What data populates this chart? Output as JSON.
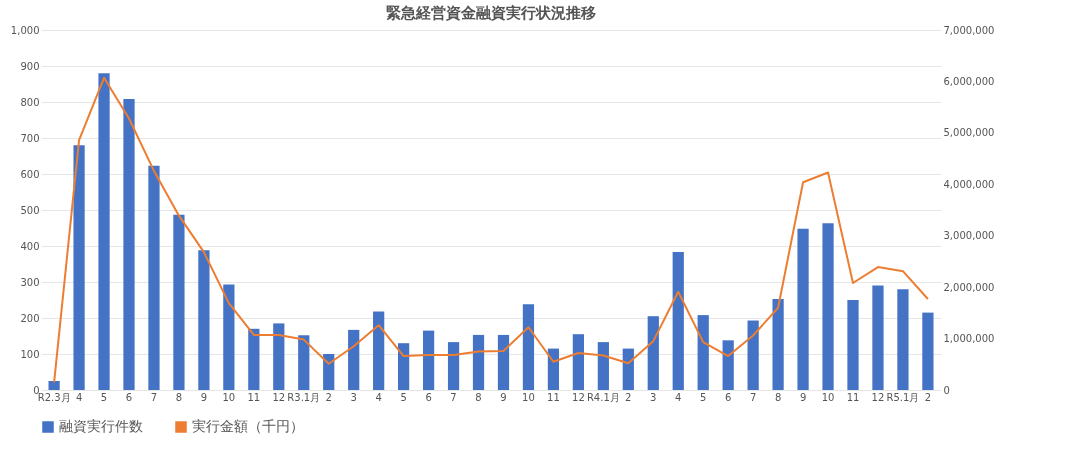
{
  "chart_data": {
    "type": "bar",
    "title": "緊急経営資金融資実行状況推移",
    "categories": [
      "R2.3月",
      "4",
      "5",
      "6",
      "7",
      "8",
      "9",
      "10",
      "11",
      "12",
      "R3.1月",
      "2",
      "3",
      "4",
      "5",
      "6",
      "7",
      "8",
      "9",
      "10",
      "11",
      "12",
      "R4.1月",
      "2",
      "3",
      "4",
      "5",
      "6",
      "7",
      "8",
      "9",
      "10",
      "11",
      "12",
      "R5.1月",
      "2"
    ],
    "series": [
      {
        "name": "融資実行件数",
        "color": "#4472c4",
        "values": [
          25,
          680,
          880,
          808,
          623,
          487,
          388,
          293,
          170,
          185,
          152,
          100,
          167,
          218,
          130,
          165,
          133,
          153,
          153,
          238,
          115,
          155,
          133,
          115,
          205,
          383,
          208,
          138,
          193,
          253,
          448,
          463,
          250,
          290,
          280,
          215
        ]
      },
      {
        "name": "実行金額（千円）",
        "type": "line",
        "axis": "y2",
        "color": "#ed7d31",
        "values": [
          150000,
          4860000,
          6070000,
          5280000,
          4260000,
          3390000,
          2680000,
          1690000,
          1070000,
          1070000,
          980000,
          510000,
          850000,
          1260000,
          660000,
          680000,
          680000,
          750000,
          760000,
          1220000,
          550000,
          720000,
          670000,
          520000,
          950000,
          1910000,
          930000,
          660000,
          1060000,
          1600000,
          4040000,
          4230000,
          2080000,
          2390000,
          2310000,
          1770000
        ]
      }
    ],
    "ylim": [
      0,
      1000
    ],
    "yticks": [
      0,
      100,
      200,
      300,
      400,
      500,
      600,
      700,
      800,
      900,
      {
        "value": 1000,
        "label": "1,000"
      }
    ],
    "y2lim": [
      0,
      7000000
    ],
    "y2ticks": [
      0,
      {
        "value": 1000000,
        "label": "1,000,000"
      },
      {
        "value": 2000000,
        "label": "2,000,000"
      },
      {
        "value": 3000000,
        "label": "3,000,000"
      },
      {
        "value": 4000000,
        "label": "4,000,000"
      },
      {
        "value": 5000000,
        "label": "5,000,000"
      },
      {
        "value": 6000000,
        "label": "6,000,000"
      },
      {
        "value": 7000000,
        "label": "7,000,000"
      }
    ],
    "grid": "y",
    "legend": "bottom",
    "marker": "none",
    "line_style": "solid"
  }
}
